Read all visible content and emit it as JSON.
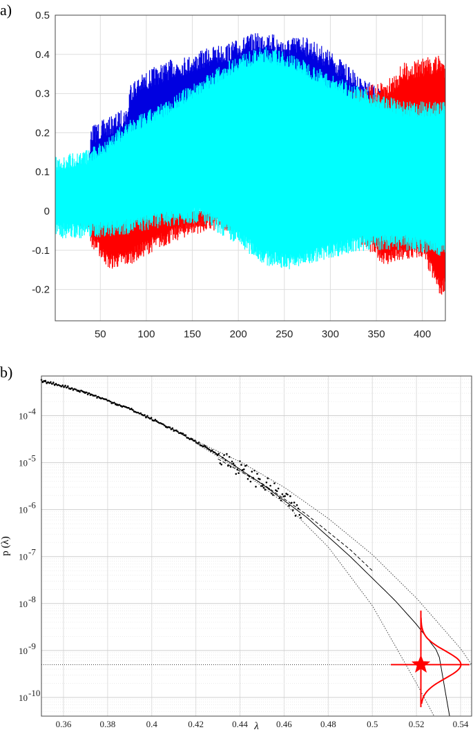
{
  "panel_labels": {
    "a": "a)",
    "b": "b)"
  },
  "colors": {
    "blue": "#0000e0",
    "red": "#ff0000",
    "cyan": "#00ffff",
    "black": "#000000",
    "grid": "#dddddd"
  },
  "chart_data": [
    {
      "type": "line",
      "panel": "a",
      "xlim": [
        1,
        425
      ],
      "ylim": [
        -0.28,
        0.5
      ],
      "x_ticks": [
        50,
        100,
        150,
        200,
        250,
        300,
        350,
        400
      ],
      "x_tick_labels": [
        "50",
        "100",
        "150",
        "200",
        "250",
        "300",
        "350",
        "400"
      ],
      "y_ticks": [
        -0.2,
        -0.1,
        0,
        0.1,
        0.2,
        0.3,
        0.4,
        0.5
      ],
      "y_tick_labels": [
        "-0.2",
        "-0.1",
        "0",
        "0.1",
        "0.2",
        "0.3",
        "0.4",
        "0.5"
      ],
      "grid": true,
      "series": [
        {
          "color": "blue",
          "envelope": "upper",
          "x": [
            1,
            20,
            38,
            40,
            60,
            80,
            82,
            110,
            130,
            150,
            170,
            190,
            210,
            230,
            250,
            270,
            300,
            330,
            360,
            400,
            425
          ],
          "y": [
            0.08,
            0.12,
            0.14,
            0.22,
            0.24,
            0.27,
            0.33,
            0.37,
            0.39,
            0.4,
            0.42,
            0.43,
            0.45,
            0.46,
            0.44,
            0.45,
            0.41,
            0.35,
            0.3,
            0.25,
            0.22
          ]
        },
        {
          "color": "red",
          "envelope": "lower",
          "x": [
            1,
            20,
            38,
            40,
            60,
            80,
            110,
            150,
            180,
            200,
            240,
            270,
            300,
            330,
            360,
            380,
            400,
            420,
            425
          ],
          "y": [
            -0.02,
            -0.03,
            -0.05,
            -0.09,
            -0.15,
            -0.14,
            -0.1,
            -0.06,
            -0.05,
            -0.05,
            -0.06,
            -0.06,
            -0.06,
            -0.08,
            -0.14,
            -0.13,
            -0.12,
            -0.22,
            -0.2
          ]
        },
        {
          "color": "red",
          "envelope": "upper",
          "x": [
            300,
            320,
            340,
            360,
            380,
            400,
            420,
            425
          ],
          "y": [
            0.3,
            0.31,
            0.32,
            0.33,
            0.38,
            0.39,
            0.4,
            0.38
          ]
        },
        {
          "color": "cyan",
          "envelope": "band",
          "x": [
            1,
            40,
            80,
            120,
            160,
            200,
            230,
            260,
            300,
            340,
            380,
            425
          ],
          "upper": [
            0.12,
            0.14,
            0.21,
            0.26,
            0.32,
            0.38,
            0.4,
            0.38,
            0.33,
            0.29,
            0.26,
            0.26
          ],
          "lower": [
            -0.05,
            -0.05,
            -0.04,
            -0.02,
            -0.01,
            -0.07,
            -0.12,
            -0.13,
            -0.1,
            -0.08,
            -0.08,
            -0.1
          ]
        }
      ]
    },
    {
      "type": "line",
      "panel": "b",
      "log_y": true,
      "xlabel": "λ",
      "ylabel": "p (λ)",
      "xlim": [
        0.35,
        0.545
      ],
      "ylim": [
        4e-11,
        0.0007
      ],
      "x_ticks": [
        0.36,
        0.38,
        0.4,
        0.42,
        0.44,
        0.46,
        0.48,
        0.5,
        0.52,
        0.54
      ],
      "x_tick_labels": [
        "0.36",
        "0.38",
        "0.4",
        "0.42",
        "0.44",
        "0.46",
        "0.48",
        "0.5",
        "0.52",
        "0.54"
      ],
      "y_tick_exponents": [
        -10,
        -9,
        -8,
        -7,
        -6,
        -5,
        -4
      ],
      "y_tick_base": "10",
      "grid": true,
      "series": [
        {
          "name": "",
          "style": "empirical-dots",
          "x": [
            0.35,
            0.36,
            0.37,
            0.38,
            0.39,
            0.4,
            0.41,
            0.42,
            0.43,
            0.44,
            0.45,
            0.46,
            0.468
          ],
          "y": [
            0.00055,
            0.00043,
            0.00031,
            0.00021,
            0.00014,
            8.5e-05,
            5e-05,
            2.8e-05,
            1.5e-05,
            7.5e-06,
            3.8e-06,
            1.8e-06,
            7e-07
          ]
        },
        {
          "name": "",
          "style": "fit-solid",
          "x": [
            0.35,
            0.37,
            0.39,
            0.41,
            0.43,
            0.45,
            0.47,
            0.49,
            0.51,
            0.52,
            0.53,
            0.535
          ],
          "y": [
            0.00055,
            0.00032,
            0.00014,
            5e-05,
            1.5e-05,
            3.5e-06,
            7e-07,
            1e-07,
            1.2e-08,
            3.6e-09,
            9e-10,
            4e-11
          ]
        },
        {
          "name": "",
          "style": "ci-upper-dotted",
          "x": [
            0.42,
            0.44,
            0.46,
            0.48,
            0.5,
            0.52,
            0.54,
            0.545
          ],
          "y": [
            2.9e-05,
            1.05e-05,
            3e-06,
            6.5e-07,
            1.1e-07,
            1.3e-08,
            1.1e-09,
            5e-10
          ]
        },
        {
          "name": "",
          "style": "ci-lower-dotted",
          "x": [
            0.42,
            0.44,
            0.46,
            0.48,
            0.5,
            0.52,
            0.528
          ],
          "y": [
            2.6e-05,
            7e-06,
            1.4e-06,
            1.6e-07,
            9e-09,
            2e-10,
            4e-11
          ]
        },
        {
          "name": "",
          "style": "dashed",
          "x": [
            0.43,
            0.45,
            0.47,
            0.49,
            0.5
          ],
          "y": [
            1.2e-05,
            3.6e-06,
            8e-07,
            1.4e-07,
            5e-08
          ]
        }
      ],
      "reference_level": 5e-10,
      "marker": {
        "shape": "star",
        "x": 0.522,
        "y": 5e-10,
        "color": "red"
      }
    }
  ]
}
